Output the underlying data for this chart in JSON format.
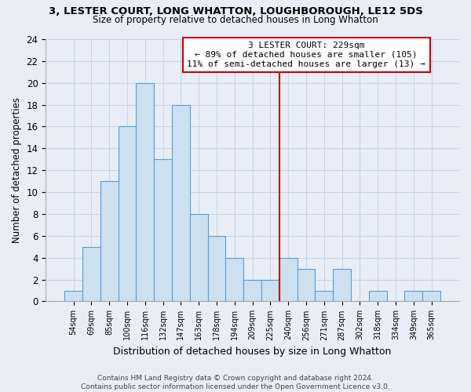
{
  "title": "3, LESTER COURT, LONG WHATTON, LOUGHBOROUGH, LE12 5DS",
  "subtitle": "Size of property relative to detached houses in Long Whatton",
  "xlabel": "Distribution of detached houses by size in Long Whatton",
  "ylabel": "Number of detached properties",
  "bar_color": "#cce0f0",
  "bar_edge_color": "#5b9bd5",
  "bin_labels": [
    "54sqm",
    "69sqm",
    "85sqm",
    "100sqm",
    "116sqm",
    "132sqm",
    "147sqm",
    "163sqm",
    "178sqm",
    "194sqm",
    "209sqm",
    "225sqm",
    "240sqm",
    "256sqm",
    "271sqm",
    "287sqm",
    "302sqm",
    "318sqm",
    "334sqm",
    "349sqm",
    "365sqm"
  ],
  "bar_heights": [
    1,
    5,
    11,
    16,
    20,
    13,
    18,
    8,
    6,
    4,
    2,
    2,
    4,
    3,
    1,
    3,
    0,
    1,
    0,
    1,
    1
  ],
  "ylim": [
    0,
    24
  ],
  "yticks": [
    0,
    2,
    4,
    6,
    8,
    10,
    12,
    14,
    16,
    18,
    20,
    22,
    24
  ],
  "vline_index": 11.5,
  "annotation_title": "3 LESTER COURT: 229sqm",
  "annotation_line1": "← 89% of detached houses are smaller (105)",
  "annotation_line2": "11% of semi-detached houses are larger (13) →",
  "vline_color": "#cc0000",
  "footer_line1": "Contains HM Land Registry data © Crown copyright and database right 2024.",
  "footer_line2": "Contains public sector information licensed under the Open Government Licence v3.0.",
  "background_color": "#e8eef8",
  "grid_color": "#c8d4e8",
  "title_fontsize": 9.5,
  "subtitle_fontsize": 8.5
}
